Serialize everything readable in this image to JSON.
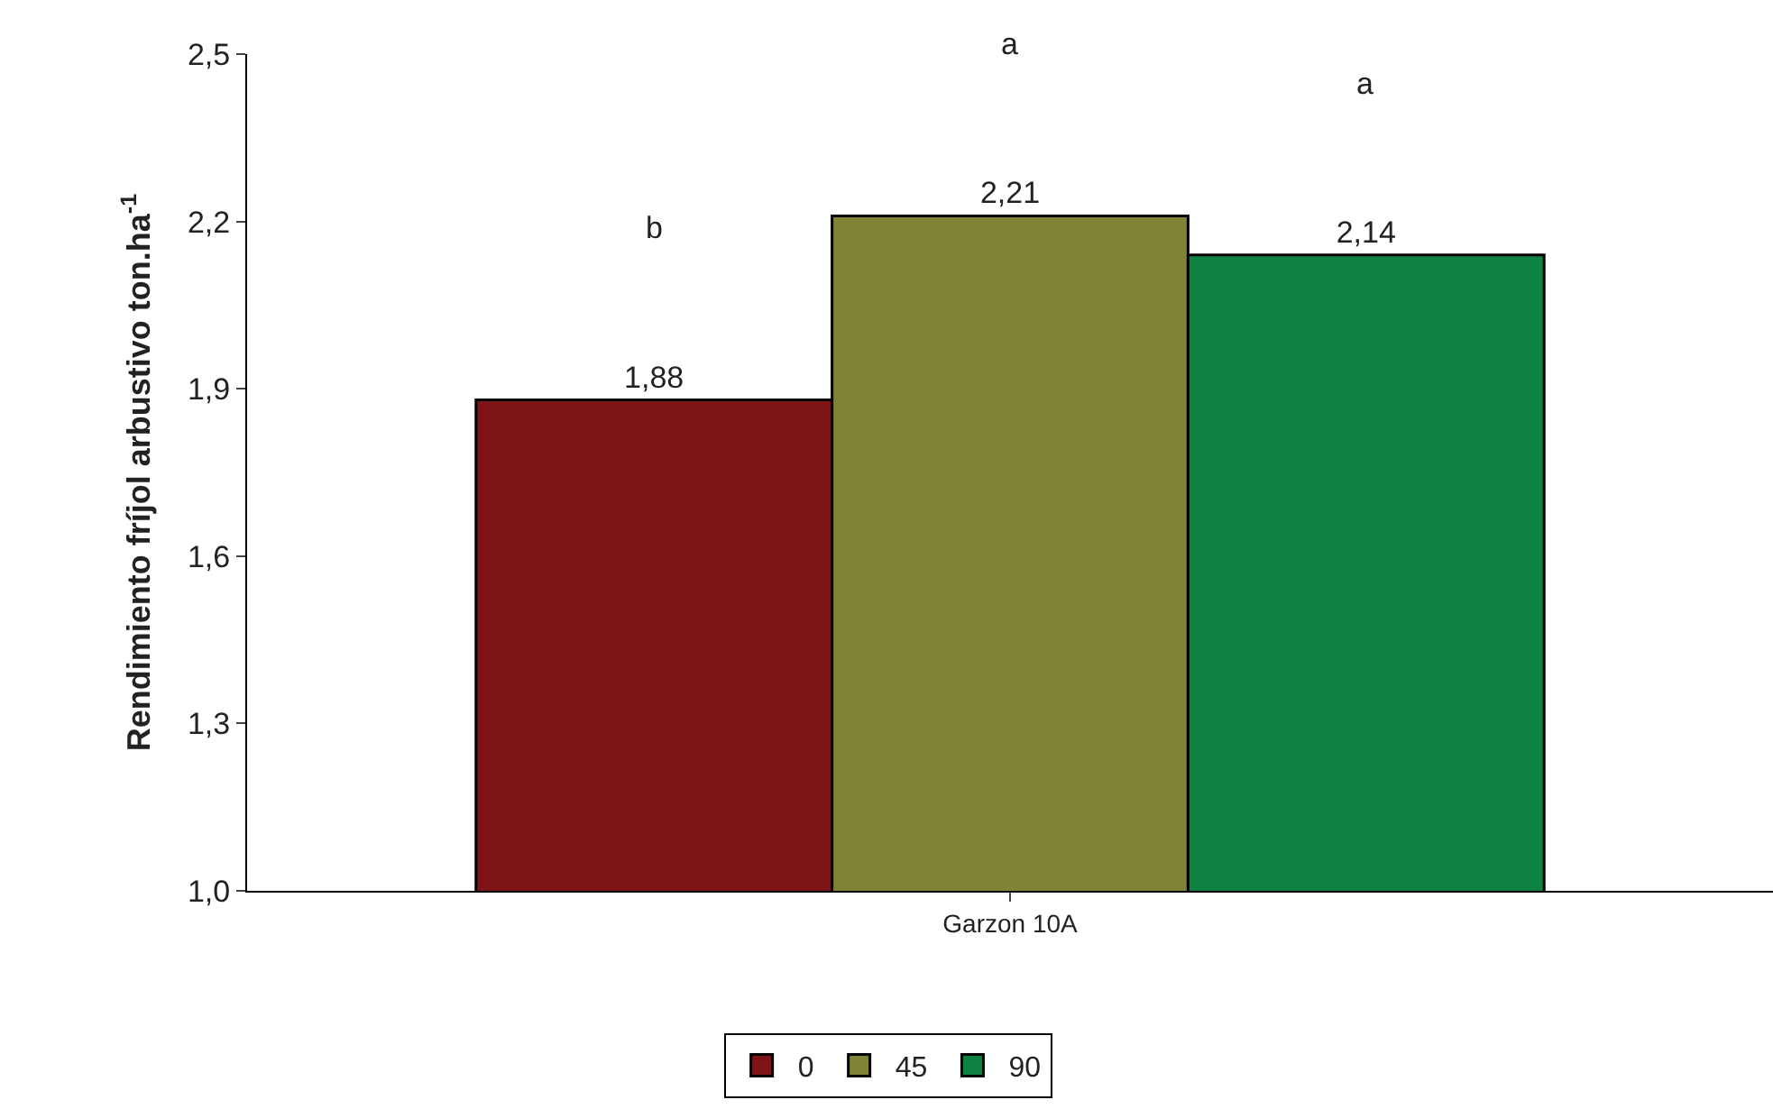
{
  "chart_data": {
    "type": "bar",
    "ylabel": "Rendimiento fríjol arbustivo ton.ha$^{-1}$",
    "categories": [
      "Garzon 10A"
    ],
    "series": [
      {
        "name": "0",
        "color": "#7f1417",
        "values": [
          1.88
        ],
        "value_labels": [
          "1,88"
        ]
      },
      {
        "name": "45",
        "color": "#808337",
        "values": [
          2.21
        ],
        "value_labels": [
          "2,21"
        ]
      },
      {
        "name": "90",
        "color": "#0e8240",
        "values": [
          2.14
        ],
        "value_labels": [
          "2,14"
        ]
      }
    ],
    "annotations": [
      "b",
      "a",
      "a"
    ],
    "ylim": [
      1.0,
      2.5
    ],
    "yticks": [
      {
        "value": 1.0,
        "label": "1,0"
      },
      {
        "value": 1.3,
        "label": "1,3"
      },
      {
        "value": 1.6,
        "label": "1,6"
      },
      {
        "value": 1.9,
        "label": "1,9"
      },
      {
        "value": 2.2,
        "label": "2,2"
      },
      {
        "value": 2.5,
        "label": "2,5"
      }
    ],
    "legend": "bottom"
  }
}
